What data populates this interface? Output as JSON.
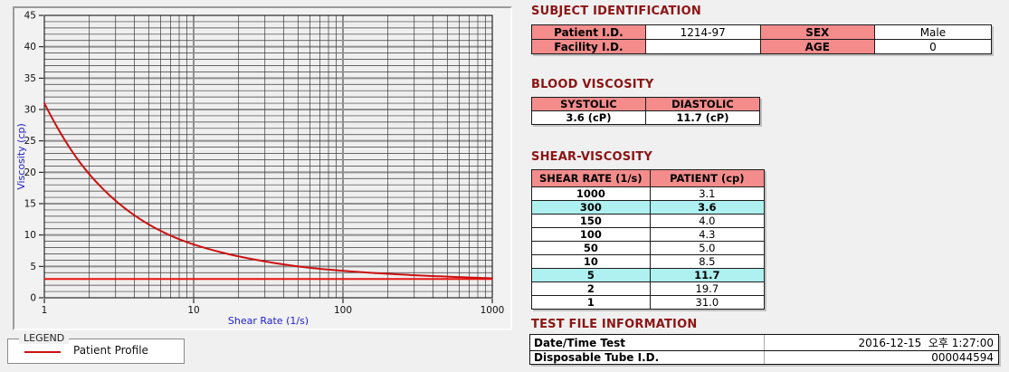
{
  "colors": {
    "page_bg": "#f0f0f0",
    "heading_maroon": "#8c1414",
    "table_header_pink": "#f48c8c",
    "row_highlight_cyan": "#aff0f0",
    "axis_label_blue": "#2020cc",
    "series_red": "#cc1111",
    "ref_line_red": "#e81212",
    "grid_minor": "#3a3a3a",
    "grid_major": "#8f8f8f",
    "plot_bg": "#efefef"
  },
  "chart_data": {
    "type": "line",
    "title": "",
    "xlabel": "Shear Rate (1/s)",
    "ylabel": "Viscosity (cp)",
    "x_scale": "log",
    "xlim": [
      1,
      1000
    ],
    "ylim": [
      0,
      45
    ],
    "y_major_step": 5,
    "y_minor_step": 1,
    "x_ticks": [
      1,
      10,
      100,
      1000
    ],
    "grid": "on",
    "legend_position": "external-bottom-left",
    "series": [
      {
        "name": "Patient Profile",
        "color": "#cc1111",
        "points": [
          [
            1,
            31.0
          ],
          [
            2,
            19.7
          ],
          [
            5,
            11.7
          ],
          [
            10,
            8.5
          ],
          [
            50,
            5.0
          ],
          [
            100,
            4.3
          ],
          [
            150,
            4.0
          ],
          [
            300,
            3.6
          ],
          [
            1000,
            3.1
          ]
        ]
      }
    ],
    "ref_line": {
      "y": 3.0,
      "color": "#e81212"
    }
  },
  "legend": {
    "title": "LEGEND",
    "series_label": "Patient Profile",
    "line_color": "#cc1111"
  },
  "subject": {
    "heading": "SUBJECT IDENTIFICATION",
    "rows": [
      {
        "label": "Patient I.D.",
        "value": "1214-97",
        "label2": "SEX",
        "value2": "Male"
      },
      {
        "label": "Facility I.D.",
        "value": "",
        "label2": "AGE",
        "value2": "0"
      }
    ]
  },
  "blood_viscosity": {
    "heading": "BLOOD VISCOSITY",
    "columns": [
      "SYSTOLIC",
      "DIASTOLIC"
    ],
    "values": [
      "3.6 (cP)",
      "11.7 (cP)"
    ]
  },
  "shear_viscosity": {
    "heading": "SHEAR-VISCOSITY",
    "columns": [
      "SHEAR RATE (1/s)",
      "PATIENT (cp)"
    ],
    "rows": [
      {
        "rate": "1000",
        "value": "3.1",
        "highlight": false
      },
      {
        "rate": "300",
        "value": "3.6",
        "highlight": true
      },
      {
        "rate": "150",
        "value": "4.0",
        "highlight": false
      },
      {
        "rate": "100",
        "value": "4.3",
        "highlight": false
      },
      {
        "rate": "50",
        "value": "5.0",
        "highlight": false
      },
      {
        "rate": "10",
        "value": "8.5",
        "highlight": false
      },
      {
        "rate": "5",
        "value": "11.7",
        "highlight": true
      },
      {
        "rate": "2",
        "value": "19.7",
        "highlight": false
      },
      {
        "rate": "1",
        "value": "31.0",
        "highlight": false
      }
    ]
  },
  "test_file": {
    "heading": "TEST FILE INFORMATION",
    "rows": [
      {
        "label": "Date/Time Test",
        "value": "2016-12-15  오후 1:27:00"
      },
      {
        "label": "Disposable Tube I.D.",
        "value": "000044594"
      }
    ]
  }
}
